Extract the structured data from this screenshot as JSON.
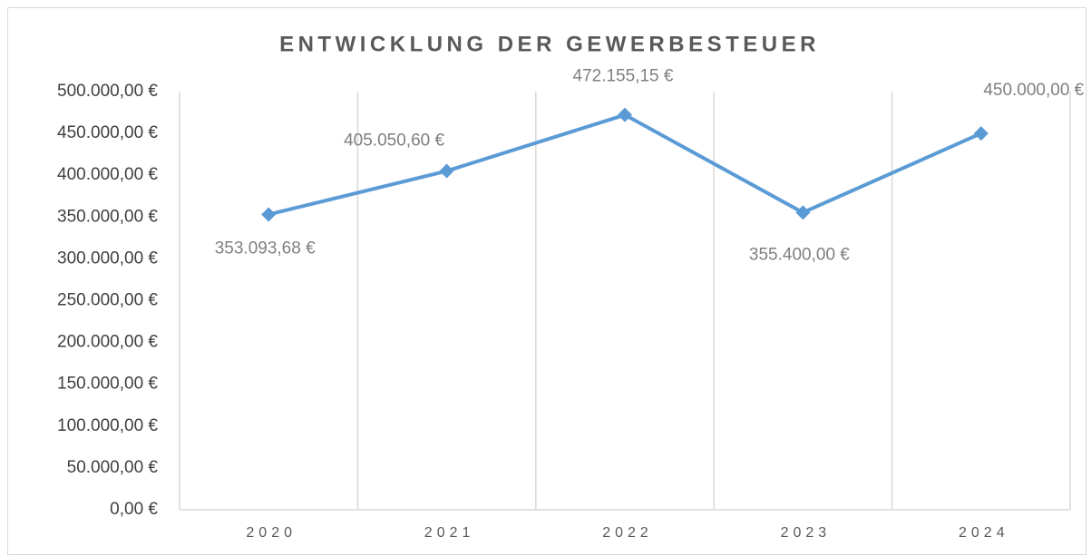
{
  "chart_data": {
    "type": "line",
    "title": "ENTWICKLUNG DER GEWERBESTEUER",
    "categories": [
      "2020",
      "2021",
      "2022",
      "2023",
      "2024"
    ],
    "values": [
      353093.68,
      405050.6,
      472155.15,
      355400.0,
      450000.0
    ],
    "value_labels": [
      "353.093,68 €",
      "405.050,60 €",
      "472.155,15 €",
      "355.400,00 €",
      "450.000,00 €"
    ],
    "color": "#5b9bd5",
    "ylim": [
      0,
      500000
    ],
    "yticks": [
      {
        "value": 0,
        "label": "0,00 €"
      },
      {
        "value": 50000,
        "label": "50.000,00 €"
      },
      {
        "value": 100000,
        "label": "100.000,00 €"
      },
      {
        "value": 150000,
        "label": "150.000,00 €"
      },
      {
        "value": 200000,
        "label": "200.000,00 €"
      },
      {
        "value": 250000,
        "label": "250.000,00 €"
      },
      {
        "value": 300000,
        "label": "300.000,00 €"
      },
      {
        "value": 350000,
        "label": "350.000,00 €"
      },
      {
        "value": 400000,
        "label": "400.000,00 €"
      },
      {
        "value": 450000,
        "label": "450.000,00 €"
      },
      {
        "value": 500000,
        "label": "500.000,00 €"
      }
    ],
    "grid": false,
    "x_grid": true
  }
}
